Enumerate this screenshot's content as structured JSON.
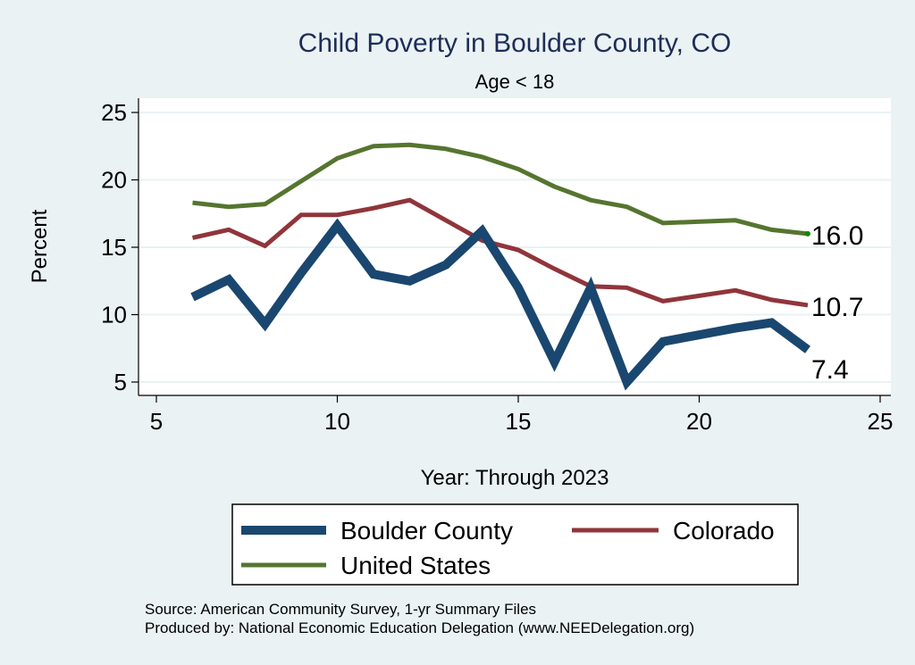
{
  "chart_data": {
    "type": "line",
    "title": "Child Poverty in Boulder County, CO",
    "subtitle": "Age < 18",
    "xlabel": "Year: Through 2023",
    "ylabel": "Percent",
    "xlim": [
      5,
      25
    ],
    "ylim": [
      5,
      25
    ],
    "xticks": [
      5,
      10,
      15,
      20,
      25
    ],
    "yticks": [
      5,
      10,
      15,
      20,
      25
    ],
    "grid": true,
    "legend_position": "bottom",
    "series": [
      {
        "name": "Boulder County",
        "color": "#1a476f",
        "x": [
          6,
          7,
          8,
          9,
          10,
          11,
          12,
          13,
          14,
          15,
          16,
          17,
          18,
          19,
          21,
          22,
          23
        ],
        "values": [
          11.3,
          12.6,
          9.3,
          13.1,
          16.6,
          13.0,
          12.5,
          13.7,
          16.2,
          12.0,
          6.5,
          12.0,
          5.0,
          8.0,
          9.0,
          9.4,
          7.4
        ],
        "end_label": "7.4"
      },
      {
        "name": "Colorado",
        "color": "#90353b",
        "x": [
          6,
          7,
          8,
          9,
          10,
          11,
          12,
          13,
          14,
          15,
          16,
          17,
          18,
          19,
          21,
          22,
          23
        ],
        "values": [
          15.7,
          16.3,
          15.1,
          17.4,
          17.4,
          17.9,
          18.5,
          17.0,
          15.5,
          14.8,
          13.4,
          12.1,
          12.0,
          11.0,
          11.8,
          11.1,
          10.7
        ],
        "end_label": "10.7"
      },
      {
        "name": "United States",
        "color": "#55752f",
        "x": [
          6,
          7,
          8,
          9,
          10,
          11,
          12,
          13,
          14,
          15,
          16,
          17,
          18,
          19,
          21,
          22,
          23
        ],
        "values": [
          18.3,
          18.0,
          18.2,
          19.9,
          21.6,
          22.5,
          22.6,
          22.3,
          21.7,
          20.8,
          19.5,
          18.5,
          18.0,
          16.8,
          17.0,
          16.3,
          16.0
        ],
        "end_label": "16.0"
      }
    ],
    "notes": [
      "Source: American Community Survey, 1-yr Summary Files",
      "Produced by: National Economic Education Delegation (www.NEEDelegation.org)"
    ]
  }
}
